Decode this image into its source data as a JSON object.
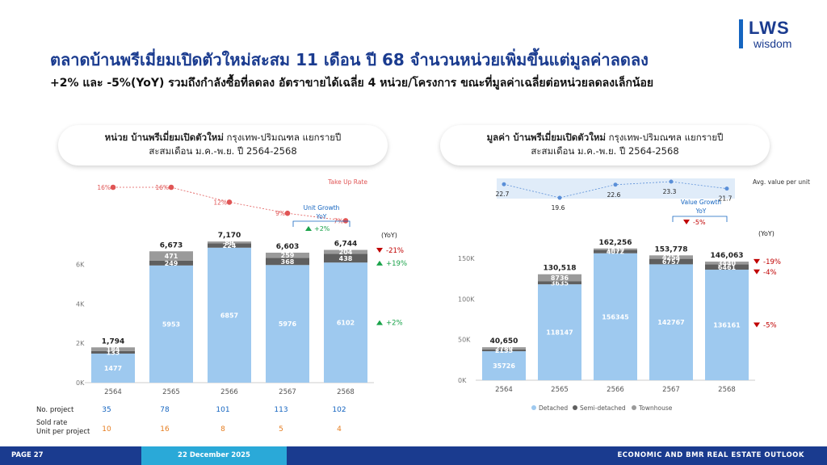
{
  "logo": {
    "main": "LWS",
    "sub": "wisdom"
  },
  "title": "ตลาดบ้านพรีเมี่ยมเปิดตัวใหม่สะสม 11 เดือน ปี 68 จำนวนหน่วยเพิ่มขึ้นแต่มูลค่าลดลง",
  "subtitle": "+2% และ -5%(YoY) รวมถึงกำลังซื้อที่ลดลง อัตราขายได้เฉลี่ย 4 หน่วย/โครงการ ขณะที่มูลค่าเฉลี่ยต่อหน่วยลดลงเล็กน้อย",
  "left_panel": {
    "title_bold": "หน่วย บ้านพรีเมี่ยมเปิดตัวใหม่",
    "title_rest": " กรุงเทพ-ปริมณฑล แยกรายปี",
    "title_line2": "สะสมเดือน ม.ค.-พ.ย. ปี 2564-2568"
  },
  "right_panel": {
    "title_bold": "มูลค่า บ้านพรีเมี่ยมเปิดตัวใหม่",
    "title_rest": " กรุงเทพ-ปริมณฑล แยกรายปี",
    "title_line2": "สะสมเดือน ม.ค.-พ.ย. ปี 2564-2568"
  },
  "colors": {
    "detached": "#9ec9ef",
    "semi": "#5f5f5f",
    "town": "#9a9a9a",
    "green": "#1aa34a",
    "red": "#c00000",
    "blue": "#1565c0",
    "orange": "#e67e22",
    "takeup": "#e05555",
    "navy": "#1a3b8f"
  },
  "chart_data": [
    {
      "type": "bar",
      "stacked": true,
      "categories": [
        "2564",
        "2565",
        "2566",
        "2567",
        "2568"
      ],
      "series": [
        {
          "name": "Detached",
          "values": [
            1477,
            5953,
            6857,
            5976,
            6102
          ]
        },
        {
          "name": "Semi-detached",
          "values": [
            133,
            249,
            224,
            368,
            438
          ]
        },
        {
          "name": "Townhouse",
          "values": [
            184,
            471,
            89,
            259,
            204
          ]
        }
      ],
      "totals": [
        "1,794",
        "6,673",
        "7,170",
        "6,603",
        "6,744"
      ],
      "ylim": [
        0,
        7300
      ],
      "yticks": [
        "0K",
        "2K",
        "4K",
        "6K"
      ],
      "yticks_values": [
        0,
        2000,
        4000,
        6000
      ],
      "yoy_header": "(YoY)",
      "yoy": [
        {
          "series": "Townhouse",
          "label": "-21%",
          "dir": "down"
        },
        {
          "series": "Semi-detached",
          "label": "+19%",
          "dir": "up"
        },
        {
          "series": "Detached",
          "label": "+2%",
          "dir": "up"
        }
      ],
      "take_up": {
        "label": "Take Up Rate",
        "values": [
          16,
          16,
          12,
          9,
          7
        ],
        "labels": [
          "16%",
          "16%",
          "12%",
          "9%",
          "7%"
        ]
      },
      "unit_growth": {
        "label": "Unit Growth",
        "yoy": "YoY",
        "value": "+2%"
      },
      "table": {
        "rows": [
          {
            "label": "No. project",
            "values": [
              "35",
              "78",
              "101",
              "113",
              "102"
            ]
          },
          {
            "label": "Sold rate",
            "label2": "Unit per project",
            "values": [
              "10",
              "16",
              "8",
              "5",
              "4"
            ]
          }
        ]
      }
    },
    {
      "type": "bar",
      "stacked": true,
      "categories": [
        "2564",
        "2565",
        "2566",
        "2567",
        "2568"
      ],
      "series": [
        {
          "name": "Detached",
          "values": [
            35726,
            118147,
            156345,
            142767,
            136161
          ]
        },
        {
          "name": "Semi-detached",
          "values": [
            2135,
            3635,
            4072,
            6757,
            6461
          ]
        },
        {
          "name": "Townhouse",
          "values": [
            2789,
            8736,
            1839,
            4254,
            3440
          ]
        }
      ],
      "totals": [
        "40,650",
        "130,518",
        "162,256",
        "153,778",
        "146,063"
      ],
      "ylim": [
        0,
        172000
      ],
      "yticks": [
        "0K",
        "50K",
        "100K",
        "150K"
      ],
      "yticks_values": [
        0,
        50000,
        100000,
        150000
      ],
      "yoy_header": "(YoY)",
      "yoy": [
        {
          "series": "Townhouse",
          "label": "-19%",
          "dir": "down"
        },
        {
          "series": "Semi-detached",
          "label": "-4%",
          "dir": "down"
        },
        {
          "series": "Detached",
          "label": "-5%",
          "dir": "down"
        }
      ],
      "avg_value": {
        "label": "Avg. value per unit",
        "values": [
          22.7,
          19.6,
          22.6,
          23.3,
          21.7
        ],
        "labels": [
          "22.7",
          "19.6",
          "22.6",
          "23.3",
          "21.7"
        ]
      },
      "value_growth": {
        "label": "Value Growth",
        "yoy": "YoY",
        "value": "-5%"
      },
      "legend": [
        "Detached",
        "Semi-detached",
        "Townhouse"
      ]
    }
  ],
  "footer": {
    "page": "PAGE 27",
    "date": "22 December 2025",
    "right": "ECONOMIC AND BMR REAL ESTATE OUTLOOK"
  }
}
